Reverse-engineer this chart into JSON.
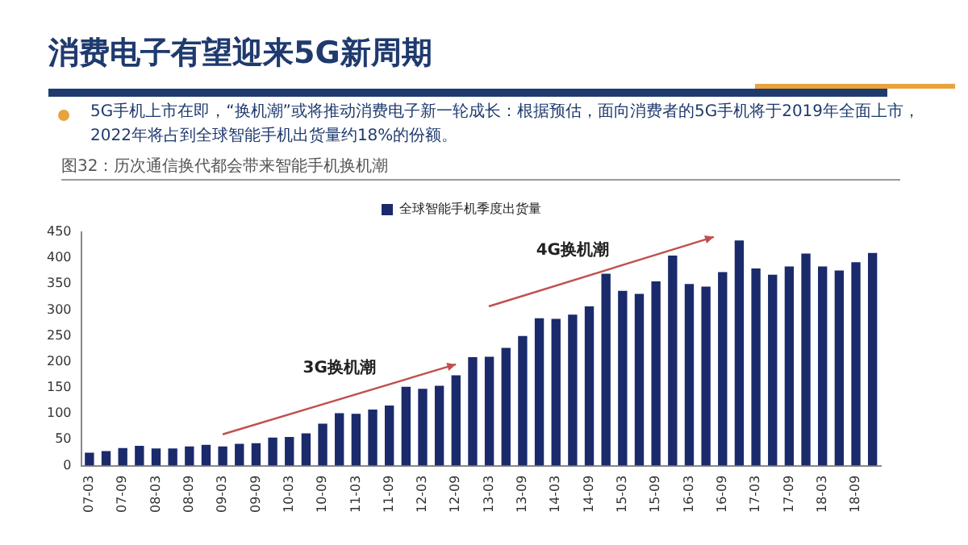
{
  "chart_data": {
    "type": "bar",
    "title": "消费电子有望迎来5G新周期",
    "subtitle": "5G手机上市在即，“换机潮”或将推动消费电子新一轮成长：根据预估，面向消费者的5G手机将于2019年全面上市，2022年将占到全球智能手机出货量约18%的份额。",
    "annotations": [
      "图32：历次通信换代都会带来智能手机换机潮",
      "3G换机潮",
      "4G换机潮"
    ],
    "categories": [
      "07-03",
      null,
      "07-09",
      null,
      "08-03",
      null,
      "08-09",
      null,
      "09-03",
      null,
      "09-09",
      null,
      "10-03",
      null,
      "10-09",
      null,
      "11-03",
      null,
      "11-09",
      null,
      "12-03",
      null,
      "12-09",
      null,
      "13-03",
      null,
      "13-09",
      null,
      "14-03",
      null,
      "14-09",
      null,
      "15-03",
      null,
      "15-09",
      null,
      "16-03",
      null,
      "16-09",
      null,
      "17-03",
      null,
      "17-09",
      null,
      "18-03",
      null,
      "18-09",
      null
    ],
    "series": [
      {
        "name": "全球智能手机季度出货量",
        "color": "#1b2a6b",
        "values": [
          25,
          28,
          34,
          38,
          33,
          33,
          37,
          40,
          37,
          42,
          43,
          54,
          55,
          62,
          81,
          101,
          100,
          108,
          116,
          152,
          148,
          154,
          174,
          209,
          210,
          227,
          250,
          284,
          283,
          291,
          307,
          370,
          337,
          331,
          355,
          405,
          350,
          345,
          373,
          434,
          380,
          368,
          384,
          409,
          384,
          376,
          392,
          410
        ]
      }
    ],
    "ylim": [
      0,
      450
    ],
    "yticks": [
      0,
      50,
      100,
      150,
      200,
      250,
      300,
      350,
      400,
      450
    ],
    "grid": false,
    "legend": "top"
  }
}
